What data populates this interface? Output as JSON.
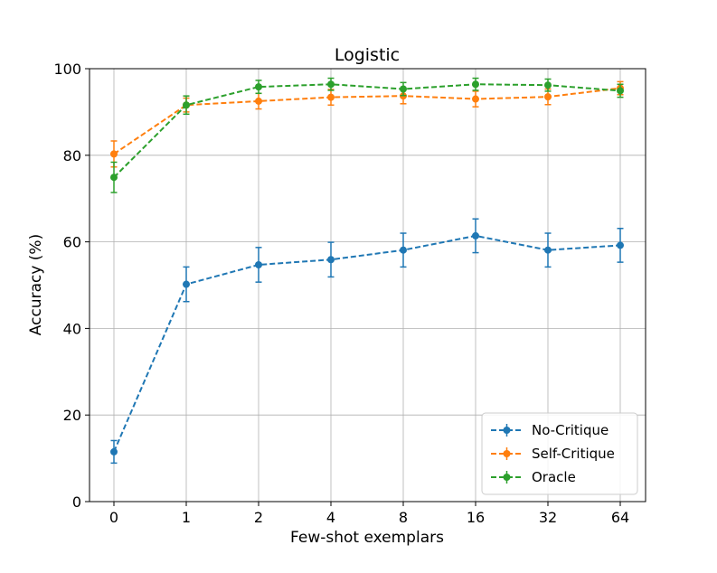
{
  "chart_data": {
    "type": "line",
    "title": "Logistic",
    "xlabel": "Few-shot exemplars",
    "ylabel": "Accuracy (%)",
    "categories": [
      "0",
      "1",
      "2",
      "4",
      "8",
      "16",
      "32",
      "64"
    ],
    "ylim": [
      0,
      100
    ],
    "yticks": [
      "0",
      "20",
      "40",
      "60",
      "80",
      "100"
    ],
    "grid": true,
    "legend_position": "lower-right",
    "series": [
      {
        "name": "No-Critique",
        "color": "#1f77b4",
        "values": [
          11.5,
          50.2,
          54.7,
          55.9,
          58.1,
          61.4,
          58.1,
          59.2
        ],
        "errors": [
          2.6,
          4.0,
          4.0,
          4.0,
          3.9,
          3.9,
          3.9,
          3.9
        ]
      },
      {
        "name": "Self-Critique",
        "color": "#ff7f0e",
        "values": [
          80.3,
          91.6,
          92.5,
          93.4,
          93.7,
          93.0,
          93.5,
          95.5
        ],
        "errors": [
          3.0,
          1.6,
          1.8,
          1.8,
          1.8,
          1.8,
          1.8,
          1.5
        ]
      },
      {
        "name": "Oracle",
        "color": "#2ca02c",
        "values": [
          74.9,
          91.6,
          95.8,
          96.4,
          95.3,
          96.4,
          96.2,
          94.9
        ],
        "errors": [
          3.5,
          2.1,
          1.5,
          1.4,
          1.5,
          1.4,
          1.4,
          1.5
        ]
      }
    ]
  }
}
